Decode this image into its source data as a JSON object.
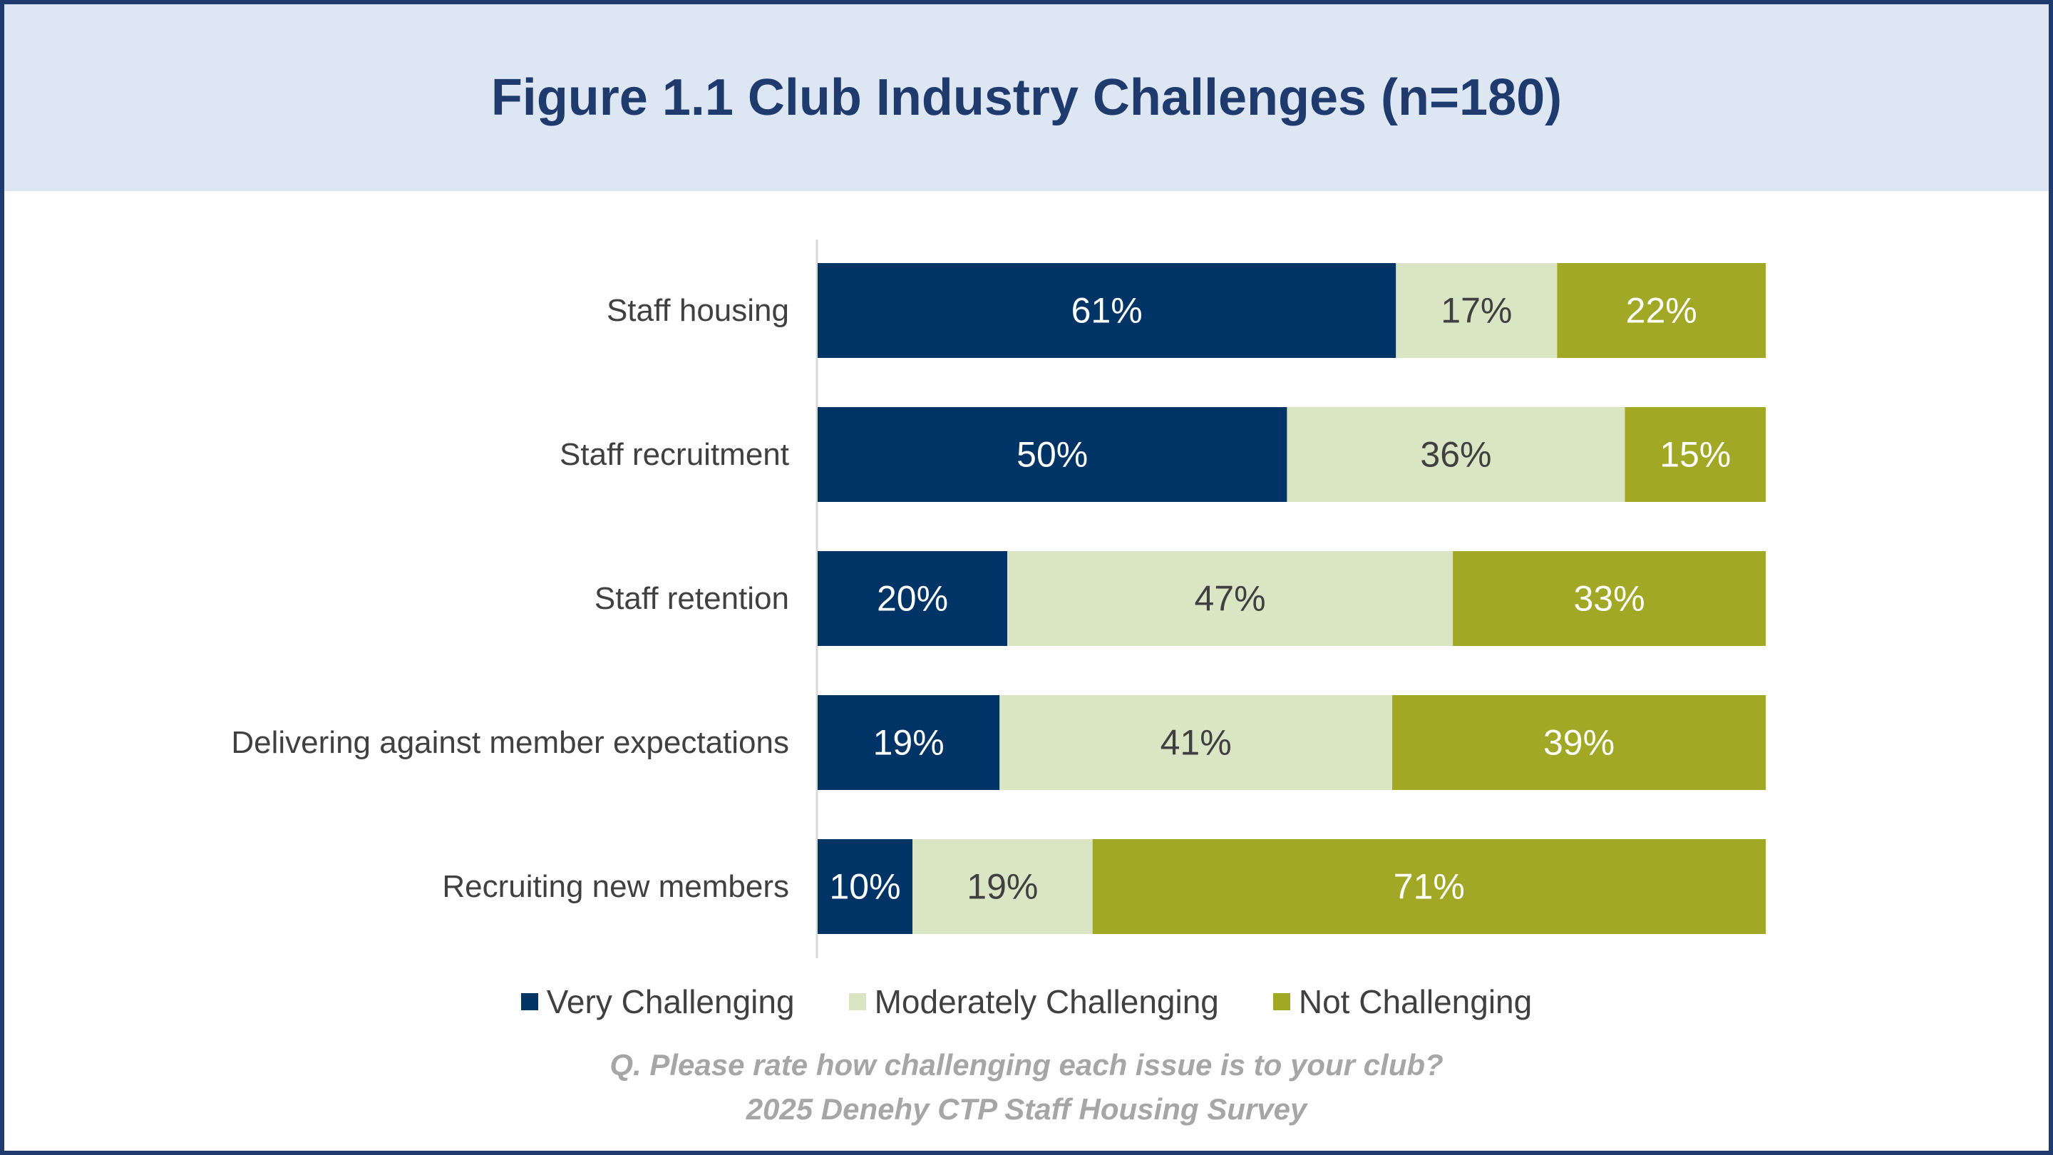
{
  "chart_data": {
    "type": "bar",
    "orientation": "horizontal",
    "stacked": true,
    "title": "Figure 1.1 Club Industry Challenges (n=180)",
    "categories": [
      "Staff housing",
      "Staff recruitment",
      "Staff retention",
      "Delivering against member expectations",
      "Recruiting new members"
    ],
    "series": [
      {
        "name": "Very Challenging",
        "color": "#003366",
        "label_color": "#ffffff",
        "values": [
          61,
          50,
          20,
          19,
          10
        ]
      },
      {
        "name": "Moderately Challenging",
        "color": "#d9e5c3",
        "label_color": "#404040",
        "values": [
          17,
          36,
          47,
          41,
          19
        ]
      },
      {
        "name": "Not Challenging",
        "color": "#a0a826",
        "label_color": "#ffffff",
        "values": [
          22,
          15,
          33,
          39,
          71
        ]
      }
    ],
    "value_suffix": "%",
    "legend_position": "bottom",
    "grid": false
  },
  "footnote": {
    "question": "Q. Please rate how challenging each issue is to your club?",
    "source": "2025 Denehy CTP Staff Housing Survey"
  }
}
